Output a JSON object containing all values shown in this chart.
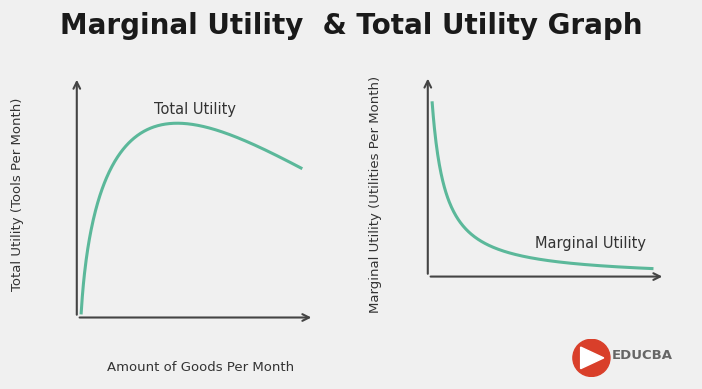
{
  "title": "Marginal Utility  & Total Utility Graph",
  "title_fontsize": 20,
  "title_fontweight": "bold",
  "background_color": "#f0f0f0",
  "curve_color": "#5bb89a",
  "curve_linewidth": 2.2,
  "left_ylabel": "Total Utility (Tools Per Month)",
  "left_xlabel": "Amount of Goods Per Month",
  "left_label": "Total Utility",
  "right_ylabel": "Marginal Utility (Utilities Per Month)",
  "right_label": "Marginal Utility",
  "axis_color": "#444444",
  "label_fontsize": 10.5,
  "axis_label_fontsize": 9.5,
  "educba_text": "EDUCBA",
  "educba_color": "#666666",
  "logo_color": "#d93f2a"
}
